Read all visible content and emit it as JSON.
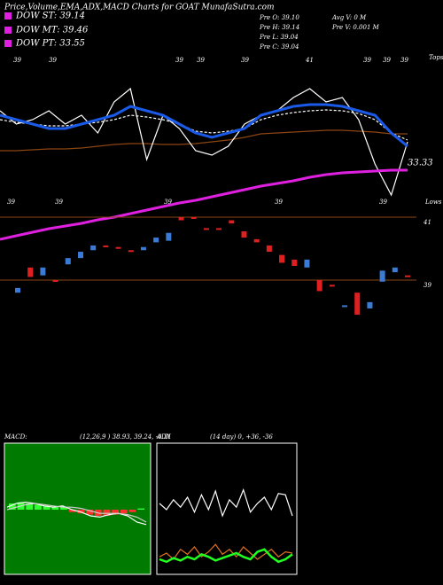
{
  "header": {
    "title": "Price,Volume,EMA,ADX,MACD Charts for GOAT MunafaSutra.com",
    "legend": [
      "DOW ST: 39.14",
      "DOW MT: 39.46",
      "DOW PT: 33.55"
    ],
    "info_left": [
      "Pre O: 39.10",
      "Pre H: 39.14",
      "Pre L: 39.04",
      "Pre C: 39.04"
    ],
    "info_right": [
      "Avg V: 0 M",
      "Pre V: 0.001 M"
    ]
  },
  "chart_data": [
    {
      "type": "line",
      "ylim": [
        25.03,
        46.53
      ],
      "price_label": "33.33",
      "tops_label": "Tops",
      "lows_label": "Lows",
      "top_labels": [
        "39",
        "39",
        "39",
        "39",
        "39",
        "41",
        "39",
        "39",
        "39"
      ],
      "low_labels": [
        "39",
        "39",
        "39",
        "39",
        "39"
      ],
      "series": [
        {
          "color": "#8b4513",
          "values": [
            35.53,
            35.53,
            35.63,
            35.73,
            35.73,
            35.83,
            36.03,
            36.23,
            36.33,
            36.33,
            36.23,
            36.23,
            36.33,
            36.53,
            36.73,
            37.03,
            37.43,
            37.53,
            37.63,
            37.73,
            37.83,
            37.83,
            37.73,
            37.63,
            37.43,
            37.43
          ]
        },
        {
          "color": "#ffffff",
          "dashed": true,
          "values": [
            39.03,
            38.73,
            38.53,
            38.33,
            38.33,
            38.53,
            38.73,
            39.03,
            39.53,
            39.33,
            39.03,
            38.53,
            37.73,
            37.53,
            37.73,
            38.03,
            39.03,
            39.53,
            39.83,
            40.03,
            40.13,
            40.03,
            39.73,
            39.03,
            37.53,
            36.73
          ]
        },
        {
          "color": "#ffffff",
          "values": [
            40.03,
            38.53,
            39.03,
            40.03,
            38.53,
            39.53,
            37.53,
            41.03,
            42.53,
            34.53,
            39.53,
            38.03,
            35.53,
            35.03,
            36.03,
            38.53,
            39.53,
            40.03,
            41.53,
            42.53,
            41.03,
            41.53,
            39.03,
            34.03,
            30.53,
            36.53
          ]
        },
        {
          "color": "#1a5ae8",
          "width": 3,
          "values": [
            39.53,
            39.03,
            38.53,
            38.03,
            38.03,
            38.53,
            39.03,
            39.53,
            40.53,
            40.03,
            39.53,
            38.53,
            37.53,
            37.03,
            37.53,
            38.03,
            39.53,
            40.03,
            40.53,
            40.73,
            40.73,
            40.53,
            40.03,
            39.53,
            37.53,
            36.03
          ]
        },
        {
          "color": "#e020e0",
          "width": 3,
          "values": [
            25.53,
            25.93,
            26.33,
            26.73,
            27.03,
            27.33,
            27.73,
            28.03,
            28.43,
            28.83,
            29.23,
            29.63,
            29.93,
            30.33,
            30.73,
            31.13,
            31.53,
            31.83,
            32.13,
            32.53,
            32.83,
            33.03,
            33.13,
            33.23,
            33.33,
            33.33
          ]
        }
      ]
    },
    {
      "type": "candlestick",
      "ylim": [
        37.48,
        41.14
      ],
      "yticks": [
        41,
        39
      ],
      "up_color": "#3a7bd5",
      "down_color": "#e02020",
      "line_color": "#8b4513",
      "open": [
        38.6,
        39.4,
        39.15,
        39.0,
        39.5,
        39.7,
        39.95,
        40.1,
        40.05,
        39.95,
        39.95,
        40.2,
        40.25,
        41.0,
        41.0,
        40.65,
        40.65,
        40.9,
        40.55,
        40.3,
        40.1,
        39.8,
        39.65,
        39.4,
        39.0,
        38.85,
        38.15,
        38.6,
        38.1,
        38.95,
        39.25,
        39.15
      ],
      "close": [
        38.75,
        39.1,
        39.4,
        38.95,
        39.7,
        39.9,
        40.1,
        40.05,
        40.0,
        39.9,
        40.05,
        40.35,
        40.5,
        40.9,
        40.95,
        40.6,
        40.6,
        40.8,
        40.35,
        40.2,
        39.9,
        39.55,
        39.45,
        39.65,
        38.65,
        38.8,
        38.2,
        37.9,
        38.3,
        39.3,
        39.4,
        39.1
      ]
    },
    {
      "type": "line",
      "title": "MACD:",
      "params": "(12,26,9 ) 38.93, 39.24, -0.31",
      "ylim": [
        -0.5,
        0.5
      ],
      "background": "#007a00",
      "histogram": {
        "up_color": "#30ff30",
        "down_color": "#ff3030",
        "values": [
          0.05,
          0.06,
          0.05,
          0.04,
          0.03,
          0.02,
          0.02,
          -0.02,
          -0.03,
          -0.04,
          -0.05,
          -0.05,
          -0.04,
          -0.03,
          -0.02,
          0.01
        ]
      },
      "series": [
        {
          "color": "#ffffff",
          "values": [
            0.02,
            0.05,
            0.06,
            0.05,
            0.03,
            0.02,
            0.03,
            0.0,
            -0.02,
            -0.05,
            -0.06,
            -0.04,
            -0.03,
            -0.05,
            -0.1,
            -0.12
          ]
        },
        {
          "color": "#d0d0d0",
          "values": [
            0.0,
            0.02,
            0.04,
            0.05,
            0.04,
            0.03,
            0.02,
            0.02,
            0.01,
            -0.01,
            -0.03,
            -0.03,
            -0.03,
            -0.04,
            -0.06,
            -0.1
          ]
        }
      ]
    },
    {
      "type": "line",
      "title": "ADX",
      "params": "(14 day) 0, +36, -36",
      "ylim": [
        0,
        100
      ],
      "background": "#000000",
      "series": [
        {
          "color": "#ffffff",
          "values": [
            55,
            50,
            58,
            52,
            60,
            48,
            62,
            50,
            65,
            45,
            58,
            52,
            66,
            48,
            55,
            60,
            50,
            63,
            62,
            45
          ]
        },
        {
          "color": "#e07020",
          "values": [
            12,
            15,
            10,
            18,
            14,
            20,
            12,
            16,
            22,
            14,
            18,
            12,
            20,
            15,
            10,
            14,
            18,
            12,
            16,
            15
          ]
        },
        {
          "color": "#20ff20",
          "width": 2.5,
          "values": [
            10,
            8,
            11,
            9,
            12,
            10,
            14,
            12,
            9,
            11,
            13,
            15,
            12,
            10,
            16,
            18,
            12,
            8,
            10,
            14
          ]
        }
      ]
    }
  ]
}
